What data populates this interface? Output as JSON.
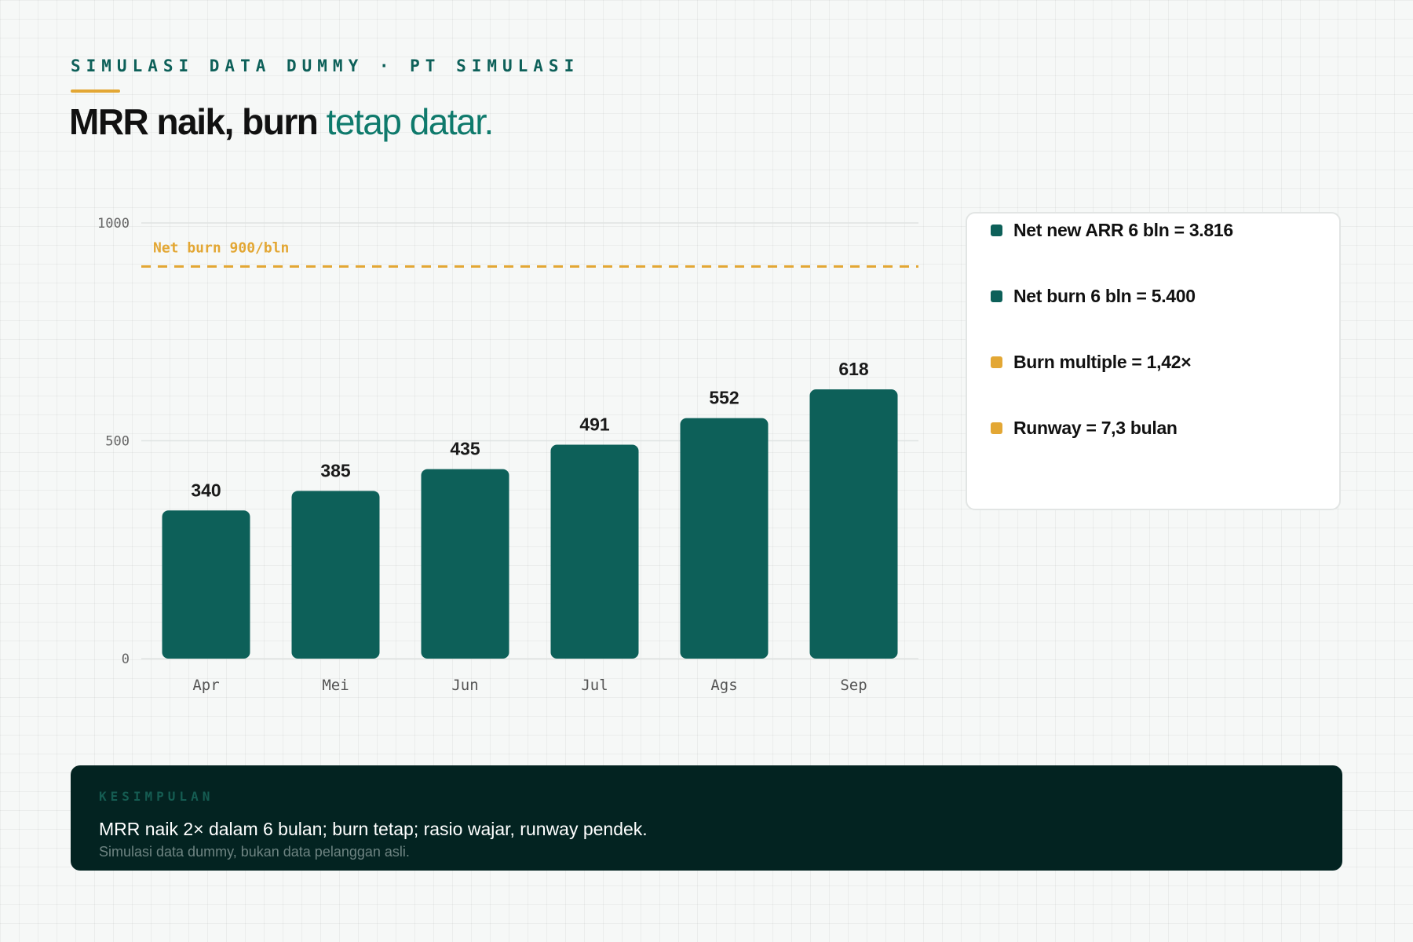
{
  "header": {
    "eyebrow": "SIMULASI DATA DUMMY · PT SIMULASI",
    "title_main": "MRR naik, burn",
    "title_accent": "tetap datar."
  },
  "chart_data": {
    "type": "bar",
    "categories": [
      "Apr",
      "Mei",
      "Jun",
      "Jul",
      "Ags",
      "Sep"
    ],
    "values": [
      340,
      385,
      435,
      491,
      552,
      618
    ],
    "ylim": [
      0,
      1000
    ],
    "yticks": [
      0,
      500,
      1000
    ],
    "grid": true,
    "bar_color": "#0d6059",
    "reference_line": {
      "value": 900,
      "label": "Net burn 900/bln",
      "color": "#e3a734",
      "style": "dashed"
    }
  },
  "stats": [
    {
      "text": "Net new ARR 6 bln = 3.816",
      "color": "#0d6059"
    },
    {
      "text": "Net burn 6 bln = 5.400",
      "color": "#0d6059"
    },
    {
      "text": "Burn multiple = 1,42×",
      "color": "#e3a734"
    },
    {
      "text": "Runway = 7,3 bulan",
      "color": "#e3a734"
    }
  ],
  "summary": {
    "label": "KESIMPULAN",
    "text": "MRR naik 2× dalam 6 bulan; burn tetap; rasio wajar, runway pendek.",
    "note": "Simulasi data dummy, bukan data pelanggan asli."
  }
}
